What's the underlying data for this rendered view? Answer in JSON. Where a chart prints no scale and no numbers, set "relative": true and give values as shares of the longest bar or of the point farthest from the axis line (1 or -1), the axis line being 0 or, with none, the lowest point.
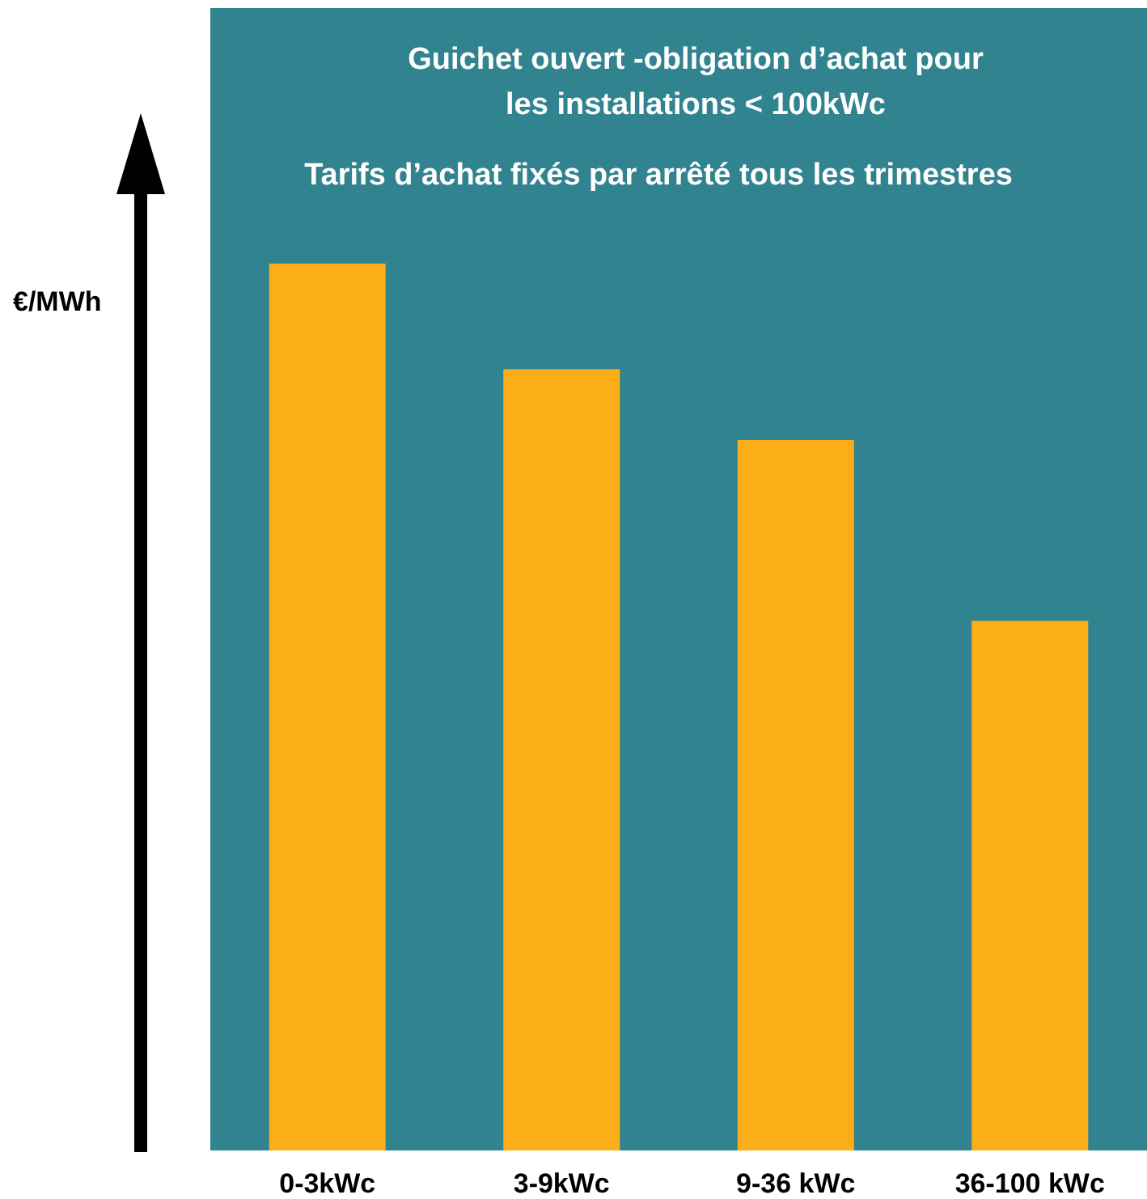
{
  "chart_data": {
    "type": "bar",
    "title": "Guichet ouvert -obligation d’achat pour\nles installations < 100kWc",
    "subtitle": "Tarifs d’achat fixés par arrêté tous les trimestres",
    "ylabel": "€/MWh",
    "categories": [
      "0-3kWc",
      "3-9kWc",
      "9-36 kWc",
      "36-100 kWc"
    ],
    "values": [
      1,
      0.881,
      0.801,
      0.597
    ],
    "color": "#fbae17",
    "relative": true
  }
}
